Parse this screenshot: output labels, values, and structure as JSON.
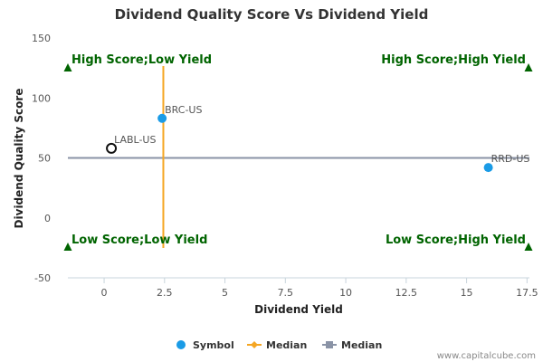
{
  "chart_data": {
    "type": "scatter",
    "title": "Dividend Quality Score Vs Dividend Yield",
    "xlabel": "Dividend Yield",
    "ylabel": "Dividend Quality Score",
    "xlim": [
      -1.5,
      17.6
    ],
    "ylim": [
      -50,
      150
    ],
    "x_ticks": [
      "0",
      "2.5",
      "5",
      "7.5",
      "10",
      "12.5",
      "15",
      "17.5"
    ],
    "x_tick_values": [
      0,
      2.5,
      5,
      7.5,
      10,
      12.5,
      15,
      17.5
    ],
    "y_ticks": [
      "150",
      "100",
      "50",
      "0",
      "-50"
    ],
    "y_tick_values": [
      150,
      100,
      50,
      0,
      -50
    ],
    "grid": false,
    "legend_position": "bottom-center",
    "points": [
      {
        "symbol": "BRC-US",
        "x": 2.4,
        "y": 83,
        "style": "filled"
      },
      {
        "symbol": "LABL-US",
        "x": 0.3,
        "y": 58,
        "style": "hollow"
      },
      {
        "symbol": "RRD-US",
        "x": 15.9,
        "y": 42,
        "style": "filled"
      }
    ],
    "median_x": 2.45,
    "median_y": 50,
    "quadrant_labels": {
      "top_left": "High Score;Low Yield",
      "top_right": "High Score;High Yield",
      "bottom_left": "Low Score;Low Yield",
      "bottom_right": "Low Score;High Yield"
    },
    "legend": [
      {
        "label": "Symbol",
        "color": "#1a9be6",
        "marker": "circle"
      },
      {
        "label": "Median",
        "color": "#f5a623",
        "marker": "diamond-line"
      },
      {
        "label": "Median",
        "color": "#8a93a6",
        "marker": "square-line"
      }
    ],
    "colors": {
      "point": "#1a9be6",
      "median_x_line": "#f5a623",
      "median_y_line": "#8a93a6",
      "quadrant_text": "#006400",
      "triangle": "#006400"
    }
  },
  "credit": "www.capitalcube.com"
}
